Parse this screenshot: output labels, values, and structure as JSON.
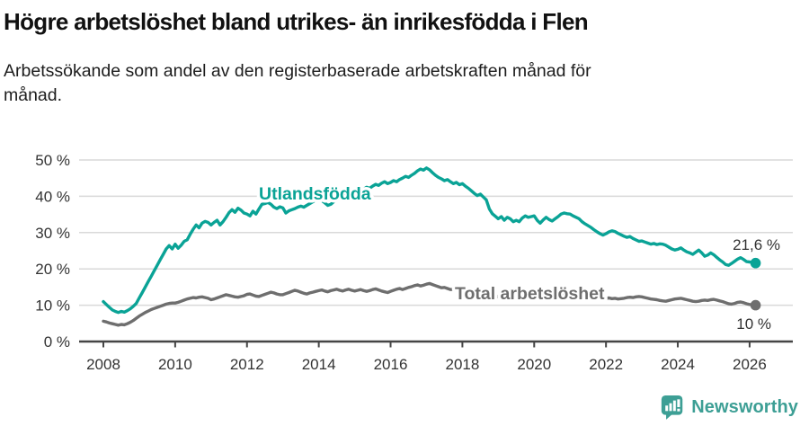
{
  "header": {
    "title": "Högre arbetslöshet bland utrikes- än inrikesfödda i Flen",
    "subtitle_lines": [
      "Arbetssökande som andel av den registerbaserade arbetskraften månad för",
      "månad."
    ]
  },
  "footer": {
    "brand": "Newsworthy",
    "logo_icon": "newsworthy-barchart-pin-icon"
  },
  "colors": {
    "series_foreign": "#0aa396",
    "series_total": "#6e6e6e",
    "grid": "#d9d9d9",
    "axis": "#454545",
    "tick_label": "#333333",
    "annotation": "#333333",
    "brand_teal": "#3d9f95",
    "title_text": "#111111"
  },
  "chart_data": {
    "type": "line",
    "title": "Högre arbetslöshet bland utrikes- än inrikesfödda i Flen",
    "subtitle": "Arbetssökande som andel av den registerbaserade arbetskraften månad för månad.",
    "xlabel": "",
    "ylabel": "",
    "x_start_year": 2008,
    "points_per_year": 12,
    "x_tick_years": [
      2008,
      2010,
      2012,
      2014,
      2016,
      2018,
      2020,
      2022,
      2024,
      2026
    ],
    "ylim": [
      0,
      50
    ],
    "y_ticks": [
      0,
      10,
      20,
      30,
      40,
      50
    ],
    "y_tick_labels": [
      "0 %",
      "10 %",
      "20 %",
      "30 %",
      "40 %",
      "50 %"
    ],
    "grid": true,
    "legend_position": "inline-labels",
    "series": [
      {
        "name": "Utlandsfödda",
        "end_label": "21,6 %",
        "end_value": 21.6,
        "values": [
          11.0,
          10.2,
          9.4,
          8.7,
          8.3,
          8.0,
          8.3,
          8.1,
          8.5,
          9.0,
          9.7,
          10.5,
          12.0,
          13.5,
          15.0,
          16.5,
          18.0,
          19.5,
          21.0,
          22.5,
          24.0,
          25.5,
          26.4,
          25.5,
          26.8,
          25.7,
          26.5,
          27.6,
          28.0,
          29.5,
          30.9,
          32.1,
          31.3,
          32.6,
          33.1,
          32.8,
          32.1,
          32.8,
          33.4,
          32.1,
          33.0,
          34.2,
          35.5,
          36.3,
          35.6,
          36.7,
          36.2,
          35.4,
          35.1,
          34.6,
          35.9,
          35.1,
          36.5,
          37.8,
          38.0,
          38.3,
          37.8,
          37.0,
          36.6,
          37.1,
          36.8,
          35.4,
          36.0,
          36.3,
          36.6,
          37.0,
          37.3,
          37.0,
          37.5,
          38.0,
          38.5,
          39.0,
          39.3,
          38.8,
          38.2,
          37.5,
          37.8,
          38.5,
          39.2,
          39.8,
          40.3,
          40.0,
          40.6,
          41.0,
          41.3,
          40.8,
          41.5,
          42.0,
          42.5,
          42.2,
          42.8,
          43.3,
          43.0,
          43.6,
          44.0,
          43.5,
          43.8,
          44.3,
          44.0,
          44.6,
          45.0,
          45.5,
          45.2,
          45.8,
          46.3,
          47.0,
          47.5,
          47.2,
          47.8,
          47.3,
          46.5,
          45.8,
          45.2,
          44.8,
          44.3,
          44.6,
          44.0,
          43.5,
          43.8,
          43.2,
          43.5,
          42.8,
          42.2,
          41.5,
          40.8,
          40.2,
          40.6,
          39.8,
          39.0,
          36.5,
          35.2,
          34.5,
          33.8,
          34.4,
          33.4,
          34.2,
          33.8,
          33.0,
          33.4,
          33.0,
          34.0,
          34.6,
          34.2,
          34.4,
          34.6,
          33.4,
          32.6,
          33.5,
          34.2,
          33.6,
          33.2,
          33.8,
          34.4,
          35.1,
          35.4,
          35.2,
          35.1,
          34.6,
          34.2,
          33.8,
          33.0,
          32.4,
          31.9,
          31.4,
          30.8,
          30.2,
          29.7,
          29.3,
          29.7,
          30.2,
          30.5,
          30.3,
          29.8,
          29.4,
          29.0,
          28.7,
          28.9,
          28.4,
          28.0,
          27.6,
          27.7,
          27.4,
          27.1,
          26.8,
          27.0,
          26.7,
          26.9,
          26.8,
          26.5,
          26.0,
          25.5,
          25.2,
          25.4,
          25.8,
          25.2,
          24.7,
          24.4,
          24.0,
          24.6,
          25.2,
          24.4,
          23.5,
          23.8,
          24.4,
          23.9,
          23.2,
          22.5,
          21.9,
          21.2,
          21.0,
          21.5,
          22.1,
          22.7,
          23.1,
          22.6,
          22.0,
          21.9,
          21.8,
          21.6
        ]
      },
      {
        "name": "Total arbetslöshet",
        "end_label": "10 %",
        "end_value": 10.0,
        "values": [
          5.6,
          5.4,
          5.1,
          4.9,
          4.7,
          4.5,
          4.7,
          4.6,
          4.9,
          5.3,
          5.8,
          6.4,
          7.0,
          7.5,
          8.0,
          8.4,
          8.8,
          9.1,
          9.4,
          9.7,
          10.0,
          10.3,
          10.5,
          10.6,
          10.6,
          10.8,
          11.1,
          11.4,
          11.7,
          11.9,
          12.1,
          12.0,
          12.2,
          12.3,
          12.1,
          11.9,
          11.5,
          11.7,
          12.0,
          12.3,
          12.6,
          12.9,
          12.7,
          12.5,
          12.3,
          12.2,
          12.4,
          12.6,
          13.0,
          13.1,
          12.8,
          12.5,
          12.4,
          12.7,
          13.0,
          13.3,
          13.6,
          13.4,
          13.1,
          12.9,
          12.9,
          13.2,
          13.5,
          13.8,
          14.1,
          13.9,
          13.6,
          13.3,
          13.1,
          13.4,
          13.6,
          13.8,
          14.0,
          14.2,
          13.9,
          13.7,
          14.0,
          14.2,
          14.4,
          14.1,
          13.9,
          14.2,
          14.4,
          14.1,
          13.9,
          14.1,
          14.3,
          14.0,
          13.8,
          14.0,
          14.3,
          14.5,
          14.2,
          13.9,
          13.7,
          13.5,
          13.8,
          14.1,
          14.4,
          14.6,
          14.3,
          14.6,
          14.9,
          15.1,
          15.4,
          15.6,
          15.3,
          15.5,
          15.8,
          16.0,
          15.7,
          15.4,
          15.1,
          14.8,
          14.9,
          14.6,
          14.3,
          14.4,
          14.1,
          13.9,
          13.8,
          13.6,
          13.4,
          13.2,
          13.0,
          12.9,
          13.0,
          12.8,
          12.6,
          12.4,
          12.5,
          12.3,
          12.4,
          12.2,
          12.1,
          12.0,
          12.1,
          11.9,
          11.8,
          11.9,
          12.0,
          12.1,
          12.0,
          12.1,
          12.2,
          12.1,
          12.4,
          12.8,
          13.1,
          13.3,
          13.4,
          13.3,
          13.2,
          13.0,
          12.9,
          12.8,
          12.9,
          13.0,
          12.8,
          12.7,
          12.5,
          12.4,
          12.2,
          12.1,
          12.0,
          11.9,
          11.8,
          11.9,
          11.9,
          12.0,
          11.8,
          11.9,
          11.7,
          11.8,
          11.9,
          12.1,
          12.2,
          12.1,
          12.3,
          12.4,
          12.3,
          12.1,
          11.9,
          11.7,
          11.6,
          11.5,
          11.3,
          11.2,
          11.1,
          11.3,
          11.5,
          11.7,
          11.8,
          11.9,
          11.7,
          11.5,
          11.3,
          11.1,
          11.0,
          11.1,
          11.3,
          11.4,
          11.3,
          11.5,
          11.6,
          11.4,
          11.2,
          11.0,
          10.7,
          10.4,
          10.3,
          10.5,
          10.8,
          10.9,
          10.7,
          10.4,
          10.2,
          10.1,
          10.0
        ]
      }
    ]
  }
}
